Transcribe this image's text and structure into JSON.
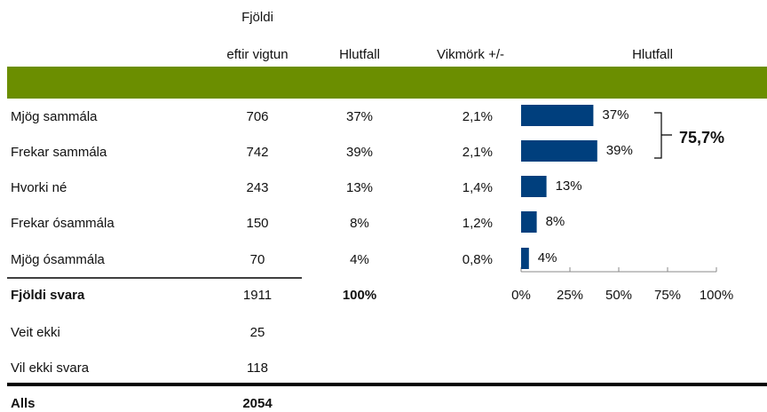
{
  "header": {
    "count_line1": "Fjöldi",
    "count_line2": "eftir vigtun",
    "share": "Hlutfall",
    "margin": "Vikmörk +/-",
    "chart": "Hlutfall"
  },
  "table": {
    "rows": [
      [
        "Mjög sammála",
        "706",
        "37%",
        "2,1%"
      ],
      [
        "Frekar sammála",
        "742",
        "39%",
        "2,1%"
      ],
      [
        "Hvorki né",
        "243",
        "13%",
        "1,4%"
      ],
      [
        "Frekar ósammála",
        "150",
        "8%",
        "1,2%"
      ],
      [
        "Mjög ósammála",
        "70",
        "4%",
        "0,8%"
      ]
    ],
    "total": [
      "Fjöldi svara",
      "1911",
      "100%"
    ],
    "extra": [
      [
        "Veit ekki",
        "25"
      ],
      [
        "Vil ekki svara",
        "118"
      ]
    ],
    "grand": [
      "Alls",
      "2054"
    ]
  },
  "chart_data": {
    "type": "bar",
    "orientation": "horizontal",
    "color": "#003f7d",
    "values": [
      37,
      39,
      13,
      8,
      4
    ],
    "value_labels": [
      "37%",
      "39%",
      "13%",
      "8%",
      "4%"
    ],
    "xlim": [
      0,
      100
    ],
    "xticks": [
      {
        "value": 0,
        "label": "0%"
      },
      {
        "value": 25,
        "label": "25%"
      },
      {
        "value": 50,
        "label": "50%"
      },
      {
        "value": 75,
        "label": "75%"
      },
      {
        "value": 100,
        "label": "100%"
      }
    ],
    "annotation": "75,7%"
  }
}
